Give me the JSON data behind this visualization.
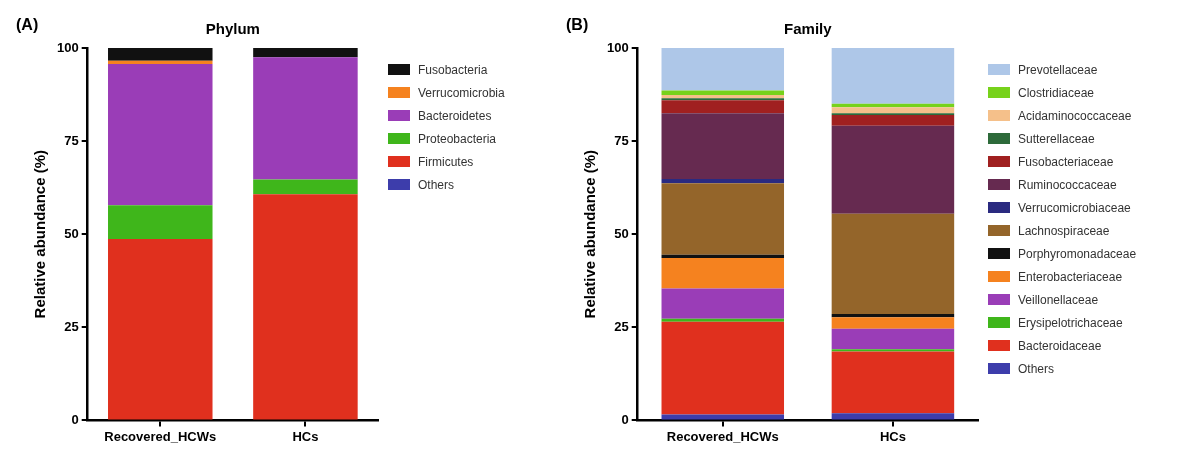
{
  "chart_data": [
    {
      "type": "bar",
      "title": "Phylum",
      "ylabel": "Relative abundance (%)",
      "annotations": [
        "(A)"
      ],
      "categories": [
        "Recovered_HCWs",
        "HCs"
      ],
      "stacked": true,
      "ylim": [
        0,
        100
      ],
      "yticks": [
        0,
        25,
        50,
        75,
        100
      ],
      "grid": false,
      "legend": "top right",
      "series": [
        {
          "name": "Others",
          "color": "#3d3dab",
          "values": [
            0,
            0
          ]
        },
        {
          "name": "Firmicutes",
          "color": "#e0301e",
          "values": [
            48.7,
            60.7
          ]
        },
        {
          "name": "Proteobacteria",
          "color": "#3fb61b",
          "values": [
            9.1,
            4.0
          ]
        },
        {
          "name": "Bacteroidetes",
          "color": "#9a3db7",
          "values": [
            37.9,
            32.8
          ]
        },
        {
          "name": "Verrucomicrobia",
          "color": "#f5821f",
          "values": [
            0.9,
            0
          ]
        },
        {
          "name": "Fusobacteria",
          "color": "#111111",
          "values": [
            3.4,
            2.5
          ]
        }
      ]
    },
    {
      "type": "bar",
      "title": "Family",
      "ylabel": "Relative abundance (%)",
      "annotations": [
        "(B)"
      ],
      "categories": [
        "Recovered_HCWs",
        "HCs"
      ],
      "stacked": true,
      "ylim": [
        0,
        100
      ],
      "yticks": [
        0,
        25,
        50,
        75,
        100
      ],
      "grid": false,
      "legend": "top right",
      "series": [
        {
          "name": "Others",
          "color": "#3d3dab",
          "values": [
            1.6,
            1.9
          ]
        },
        {
          "name": "Bacteroidaceae",
          "color": "#e0301e",
          "values": [
            24.9,
            16.6
          ]
        },
        {
          "name": "Erysipelotrichaceae",
          "color": "#3fb61b",
          "values": [
            0.8,
            0.6
          ]
        },
        {
          "name": "Veillonellaceae",
          "color": "#9a3db7",
          "values": [
            8.1,
            5.5
          ]
        },
        {
          "name": "Enterobacteriaceae",
          "color": "#f5821f",
          "values": [
            8.2,
            3.1
          ]
        },
        {
          "name": "Porphyromonadaceae",
          "color": "#111111",
          "values": [
            0.9,
            0.9
          ]
        },
        {
          "name": "Lachnospiraceae",
          "color": "#94652a",
          "values": [
            19.2,
            26.9
          ]
        },
        {
          "name": "Verrucomicrobiaceae",
          "color": "#2a2a80",
          "values": [
            1.1,
            0
          ]
        },
        {
          "name": "Ruminococcaceae",
          "color": "#662a50",
          "values": [
            17.7,
            23.6
          ]
        },
        {
          "name": "Fusobacteriaceae",
          "color": "#a02020",
          "values": [
            3.5,
            2.9
          ]
        },
        {
          "name": "Sutterellaceae",
          "color": "#2d6a3a",
          "values": [
            0.5,
            0.5
          ]
        },
        {
          "name": "Acidaminococcaceae",
          "color": "#f5c08a",
          "values": [
            0.9,
            1.6
          ]
        },
        {
          "name": "Clostridiaceae",
          "color": "#77d21b",
          "values": [
            1.2,
            0.9
          ]
        },
        {
          "name": "Prevotellaceae",
          "color": "#aec7e8",
          "values": [
            11.4,
            15.0
          ]
        }
      ]
    }
  ]
}
